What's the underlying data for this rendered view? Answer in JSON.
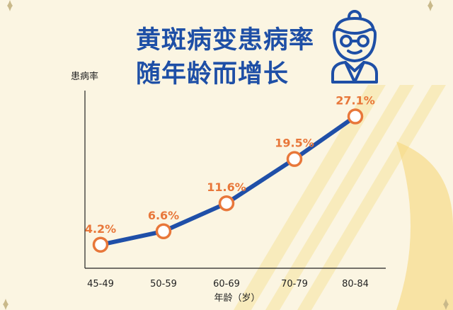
{
  "page": {
    "title_line1": "黄斑病变患病率",
    "title_line2": "随年龄而增长"
  },
  "colors": {
    "title": "#1e4fa6",
    "line": "#1f4fa8",
    "marker": "#e8773a",
    "label": "#e8773a",
    "background": "#fbf5e2",
    "stripe": "#f7e6a6"
  },
  "icon": "elderly-woman-icon",
  "chart_data": {
    "type": "line",
    "categories": [
      "45-49",
      "50-59",
      "60-69",
      "70-79",
      "80-84"
    ],
    "values": [
      4.2,
      6.6,
      11.6,
      19.5,
      27.1
    ],
    "value_labels": [
      "4.2%",
      "6.6%",
      "11.6%",
      "19.5%",
      "27.1%"
    ],
    "xlabel": "年龄（岁）",
    "ylabel": "患病率",
    "ylim": [
      0,
      30
    ],
    "grid": false,
    "legend": "none"
  }
}
